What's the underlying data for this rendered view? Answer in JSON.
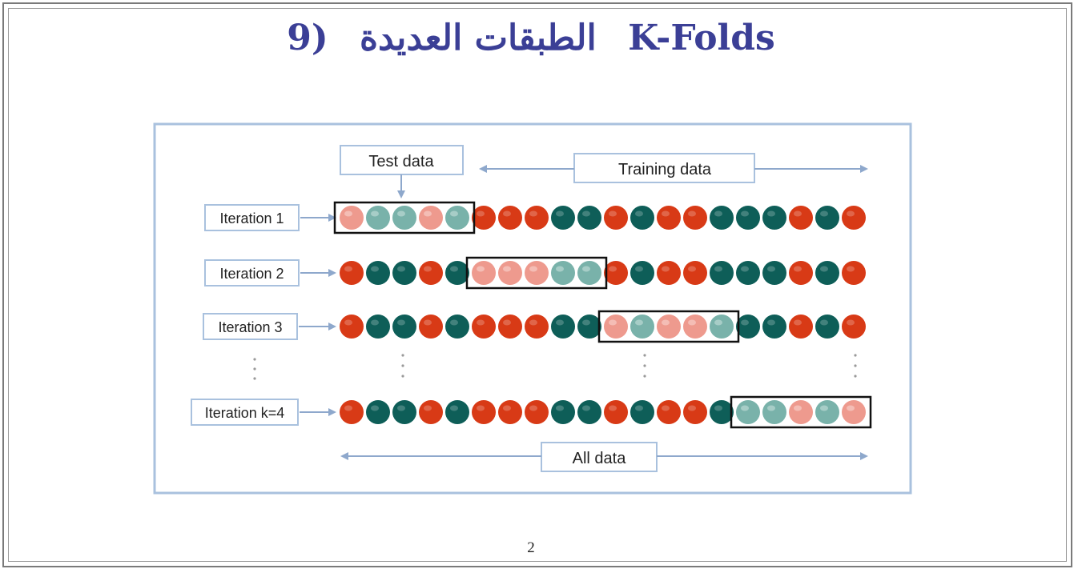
{
  "slide": {
    "title_number": "9)",
    "title_arabic": "الطبقات العديدة",
    "title_latin": "K-Folds",
    "page_number": "2"
  },
  "diagram": {
    "test_label": "Test data",
    "training_label": "Training data",
    "all_label": "All data",
    "colors": {
      "red": "#d83a16",
      "teal": "#0e5e58",
      "red_faded": "#ee9a8e",
      "teal_faded": "#79b2aa",
      "arrow": "#8ea8cc",
      "border": "#a9c1de"
    },
    "iterations": [
      {
        "label": "Iteration 1",
        "test_fold": 0,
        "balls": [
          "r",
          "t",
          "t",
          "r",
          "t",
          "r",
          "r",
          "r",
          "t",
          "t",
          "r",
          "t",
          "r",
          "r",
          "t",
          "t",
          "t",
          "r",
          "t",
          "r"
        ]
      },
      {
        "label": "Iteration 2",
        "test_fold": 1,
        "balls": [
          "r",
          "t",
          "t",
          "r",
          "t",
          "r",
          "r",
          "r",
          "t",
          "t",
          "r",
          "t",
          "r",
          "r",
          "t",
          "t",
          "t",
          "r",
          "t",
          "r"
        ]
      },
      {
        "label": "Iteration 3",
        "test_fold": 2,
        "balls": [
          "r",
          "t",
          "t",
          "r",
          "t",
          "r",
          "r",
          "r",
          "t",
          "t",
          "r",
          "t",
          "r",
          "r",
          "t",
          "t",
          "t",
          "r",
          "t",
          "r"
        ]
      },
      {
        "label": "Iteration k=4",
        "test_fold": 3,
        "balls": [
          "r",
          "t",
          "t",
          "r",
          "t",
          "r",
          "r",
          "r",
          "t",
          "t",
          "r",
          "t",
          "r",
          "r",
          "t",
          "t",
          "t",
          "r",
          "t",
          "r"
        ]
      }
    ]
  }
}
